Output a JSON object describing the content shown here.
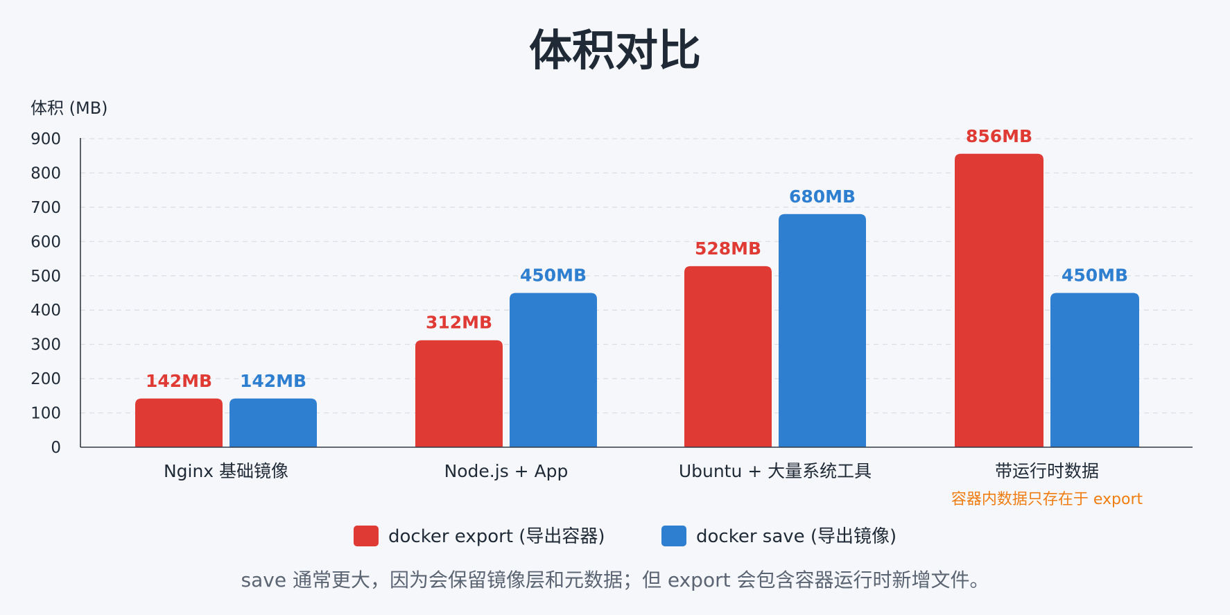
{
  "colors": {
    "export": "#e03a35",
    "save": "#2f7fd1",
    "note": "#f07d12",
    "grid": "#d9dde3",
    "axis": "#333a44"
  },
  "chart_data": {
    "type": "bar",
    "title": "体积对比",
    "ylabel": "体积 (MB)",
    "xlabel": "",
    "ylim": [
      0,
      900
    ],
    "yticks": [
      "0",
      "100",
      "200",
      "300",
      "400",
      "500",
      "600",
      "700",
      "800",
      "900"
    ],
    "grid": true,
    "categories": [
      "Nginx 基础镜像",
      "Node.js + App",
      "Ubuntu + 大量系统工具",
      "带运行时数据"
    ],
    "category_notes": [
      "",
      "",
      "",
      "容器内数据只存在于 export"
    ],
    "series": [
      {
        "name": "docker export (导出容器)",
        "values": [
          142,
          312,
          528,
          856
        ],
        "labels": [
          "142MB",
          "312MB",
          "528MB",
          "856MB"
        ]
      },
      {
        "name": "docker save (导出镜像)",
        "values": [
          142,
          450,
          680,
          450
        ],
        "labels": [
          "142MB",
          "450MB",
          "680MB",
          "450MB"
        ]
      }
    ],
    "legend_position": "bottom",
    "footnote": "save 通常更大，因为会保留镜像层和元数据；但 export 会包含容器运行时新增文件。"
  }
}
